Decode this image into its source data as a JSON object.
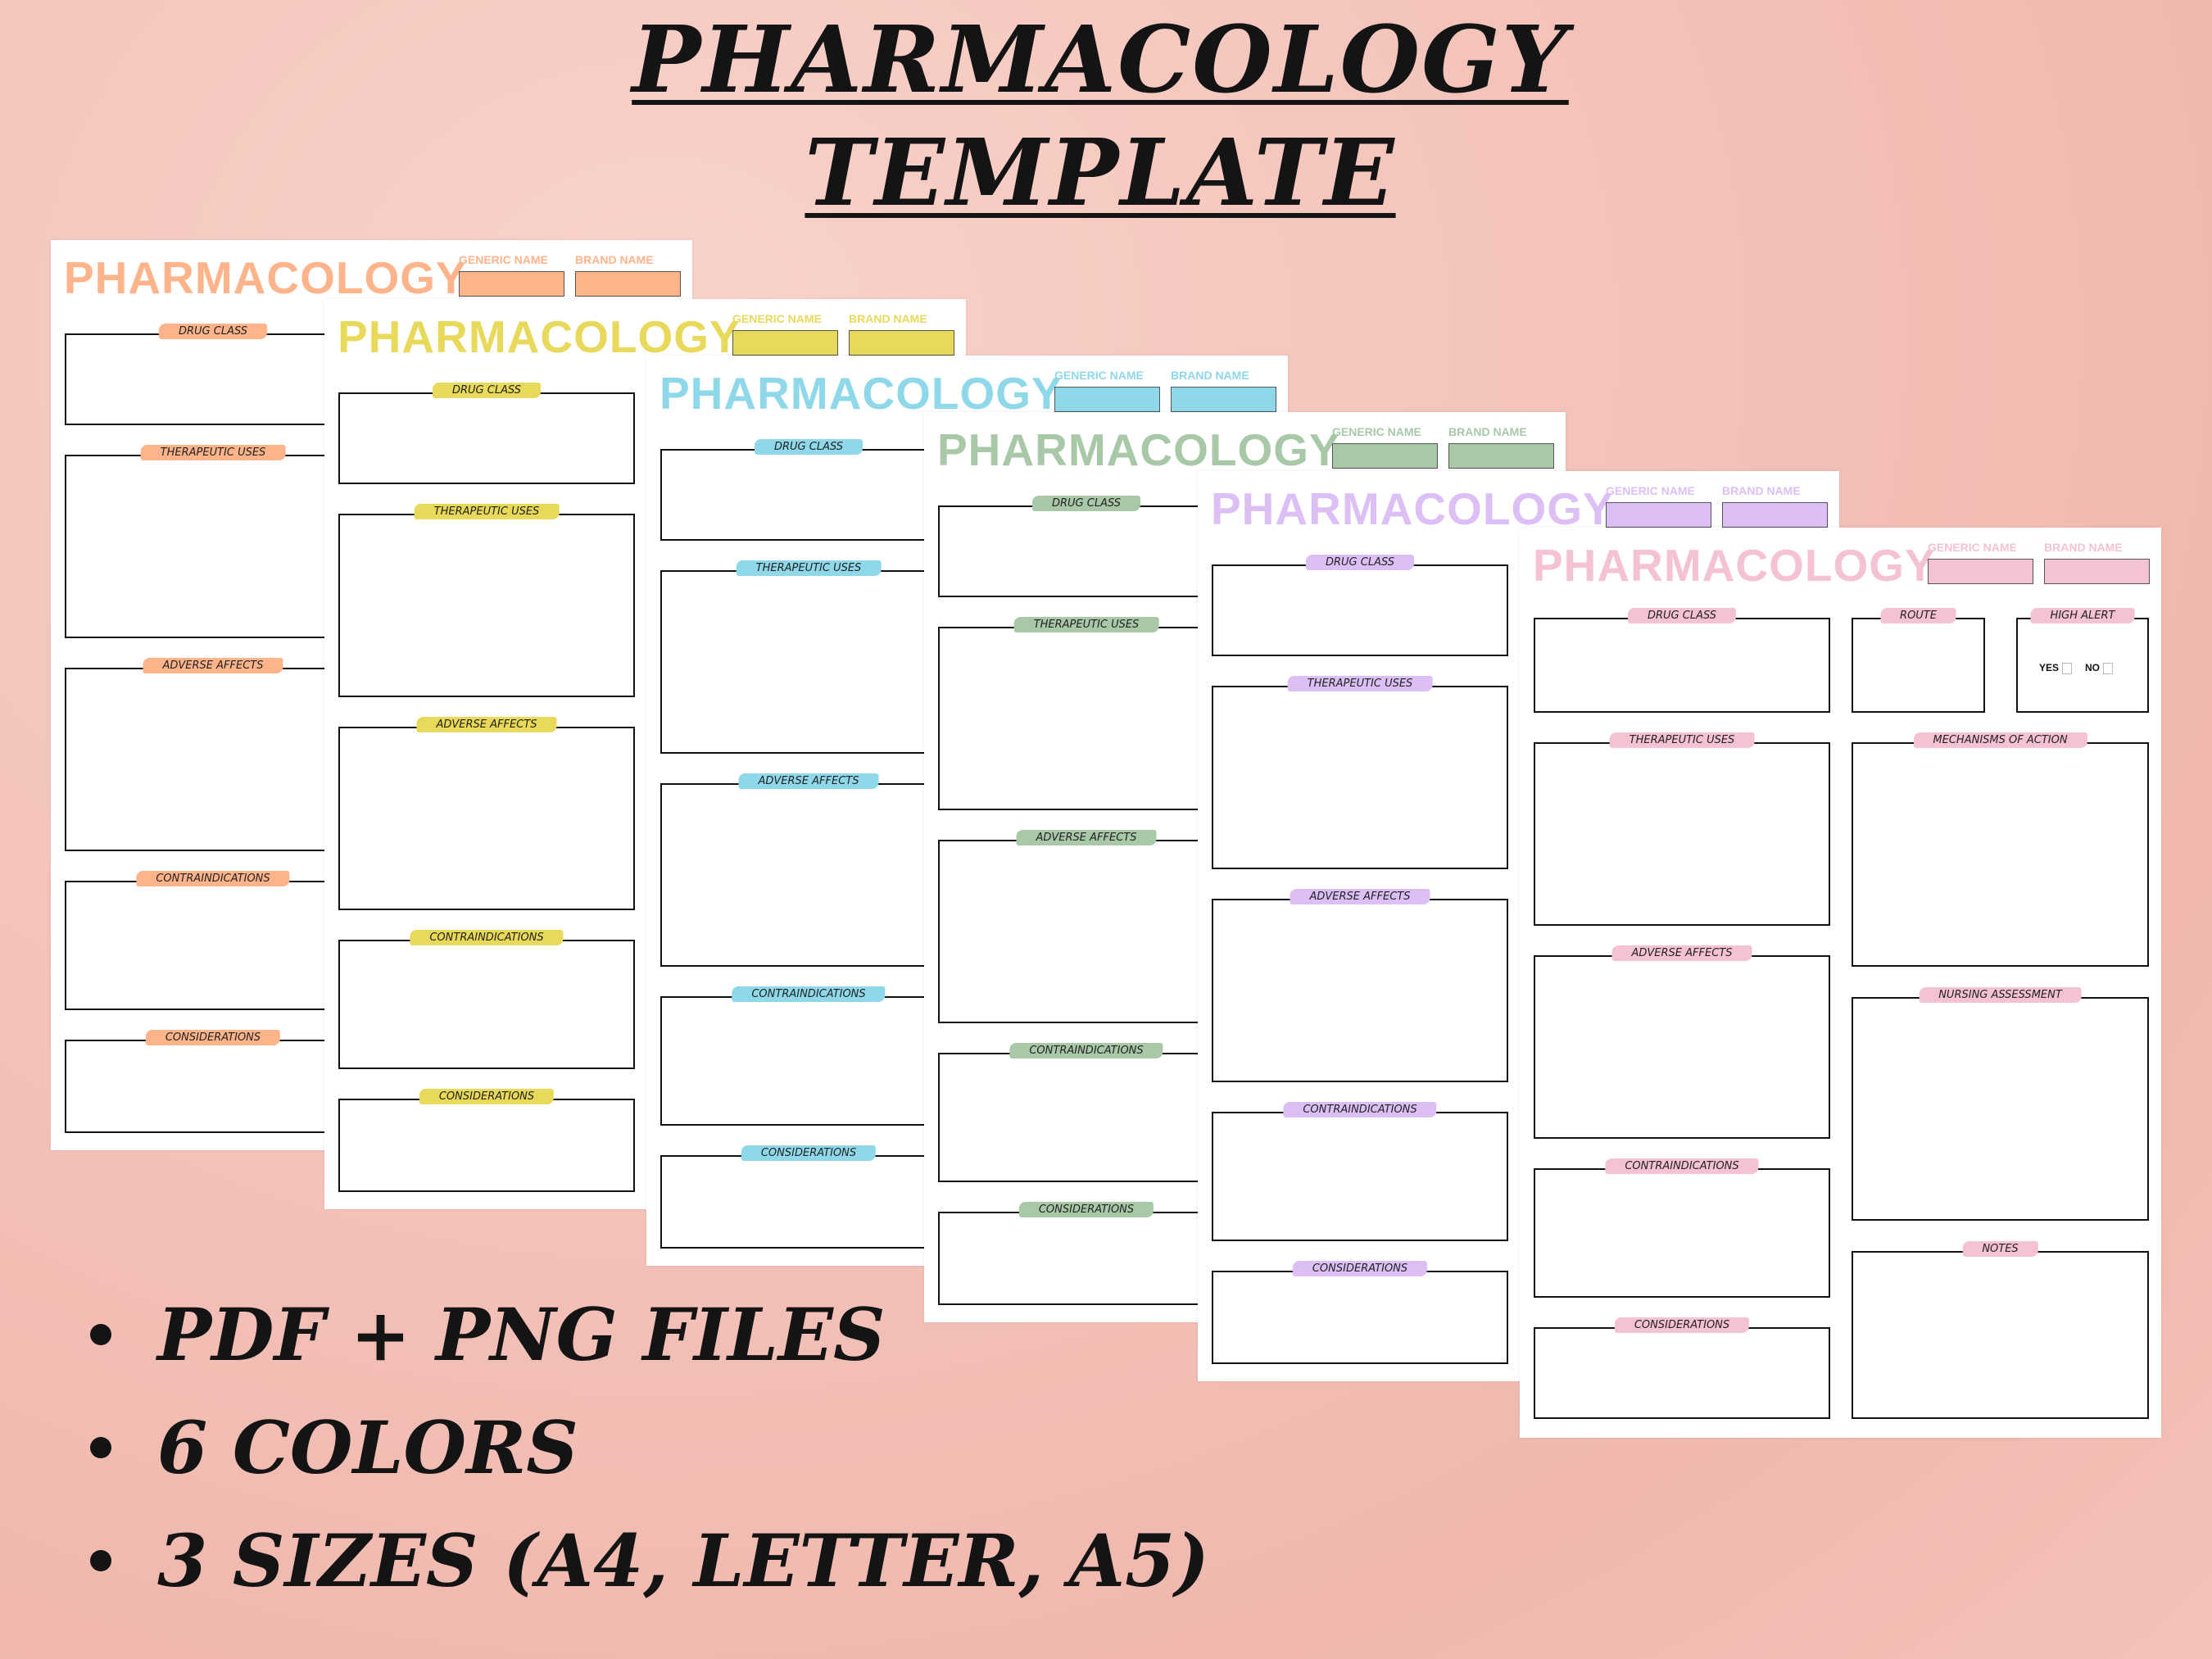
{
  "headline": {
    "line1": "PHARMACOLOGY",
    "line2": "TEMPLATE"
  },
  "bullets": [
    "PDF + PNG FILES",
    "6 COLORS",
    "3 SIZES  (A4, LETTER, A5)"
  ],
  "sheet": {
    "title": "PHARMACOLOGY",
    "generic_label": "GENERIC NAME",
    "brand_label": "BRAND NAME",
    "sections": [
      "DRUG CLASS",
      "THERAPEUTIC USES",
      "ADVERSE AFFECTS",
      "CONTRAINDICATIONS",
      "CONSIDERATIONS"
    ],
    "extra_sections": [
      "ROUTE",
      "HIGH ALERT",
      "MECHANISMS OF ACTION",
      "NURSING ASSESSMENT",
      "NOTES"
    ],
    "high_alert_yes": "YES",
    "high_alert_no": "NO"
  },
  "colors": [
    "#fdb48a",
    "#e8d95a",
    "#8ed8ea",
    "#a8c8a8",
    "#dcc0f5",
    "#f4c2d2"
  ]
}
